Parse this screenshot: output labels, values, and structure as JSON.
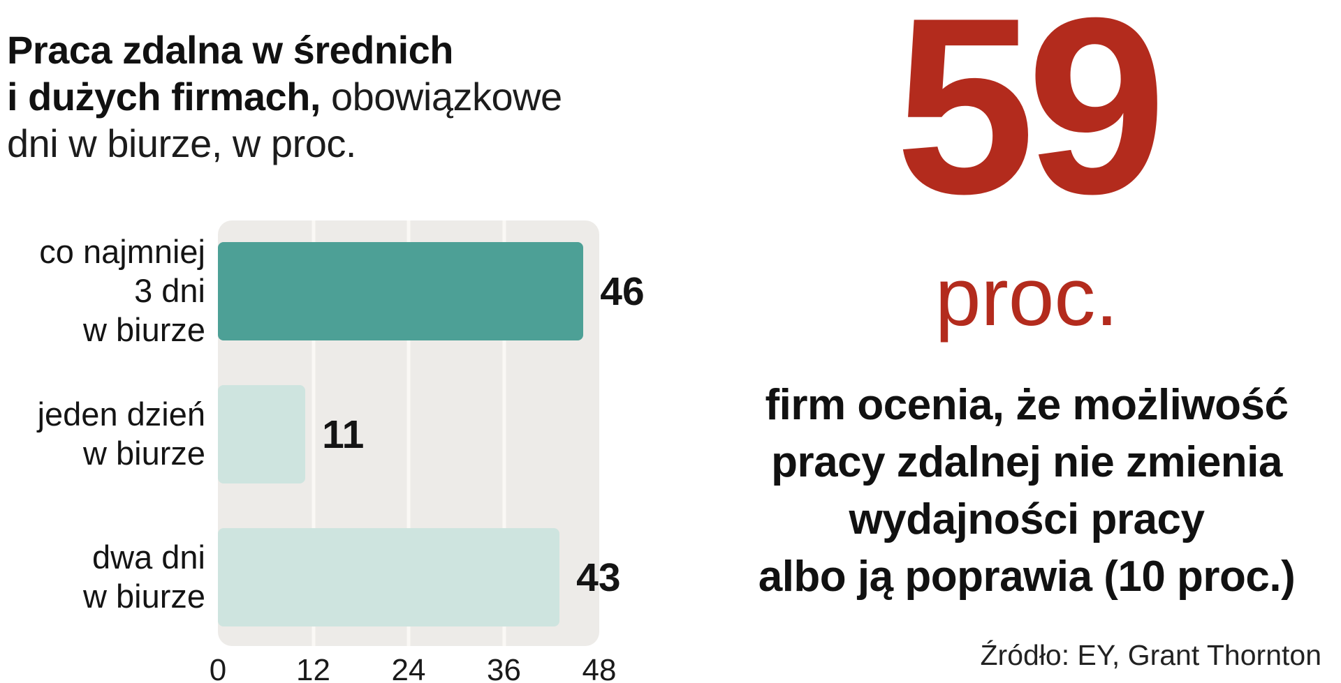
{
  "title": {
    "lines": [
      {
        "bold": "Praca zdalna w średnich",
        "regular": ""
      },
      {
        "bold": "i dużych firmach,",
        "regular": " obowiązkowe"
      },
      {
        "bold": "",
        "regular": "dni w biurze, w proc."
      }
    ]
  },
  "chart_data": {
    "type": "bar",
    "orientation": "horizontal",
    "title": "Praca zdalna w średnich i dużych firmach, obowiązkowe dni w biurze, w proc.",
    "categories": [
      "co najmniej\n3 dni\nw biurze",
      "jeden dzień\nw biurze",
      "dwa dni\nw biurze"
    ],
    "values": [
      46,
      11,
      43
    ],
    "bar_colors": [
      "#4da096",
      "#cee4df",
      "#cee4df"
    ],
    "xlim": [
      0,
      48
    ],
    "x_ticks": [
      0,
      12,
      24,
      36,
      48
    ],
    "grid": true,
    "legend": false,
    "plot_background": "#edebe8"
  },
  "highlight": {
    "number": "59",
    "unit": "proc.",
    "description": "firm ocenia, że możliwość\npracy zdalnej nie zmienia\nwydajności pracy\nalbo ją poprawia (10 proc.)",
    "accent_color": "#b32b1d"
  },
  "source": "Źródło: EY, Grant Thornton"
}
